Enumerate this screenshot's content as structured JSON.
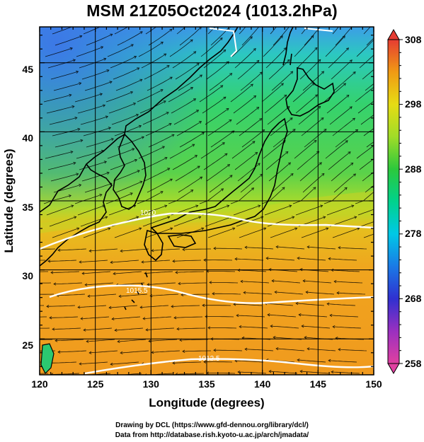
{
  "title": "MSM 21Z05Oct2024 (1013.2hPa)",
  "axes": {
    "x_label": "Longitude (degrees)",
    "y_label": "Latitude  (degrees)",
    "x_ticks": [
      "120",
      "125",
      "130",
      "135",
      "140",
      "145",
      "150"
    ],
    "y_ticks": [
      "25",
      "30",
      "35",
      "40",
      "45"
    ],
    "x_range": [
      120,
      150
    ],
    "y_range": [
      22.4,
      47.6
    ]
  },
  "colorbar": {
    "ticks": [
      "308",
      "298",
      "288",
      "278",
      "268",
      "258"
    ],
    "range": [
      258,
      308
    ],
    "colors": [
      "#e0409a",
      "#9a2db8",
      "#3030c8",
      "#1a78e6",
      "#00c8e6",
      "#00d28c",
      "#28c83c",
      "#96dc28",
      "#dcdc14",
      "#f0a014",
      "#f06e28",
      "#e63c32"
    ]
  },
  "isobar_labels": [
    "1020",
    "1015.5",
    "1012.5"
  ],
  "map": {
    "layers": [
      "temperature-shading",
      "streamlines",
      "isobars",
      "coastlines",
      "lat-lon-grid"
    ],
    "colors": {
      "north_cold": "#3cb4e6",
      "mid_green": "#3cd25a",
      "south_orange": "#f0a01e",
      "isobar": "#ffffff",
      "coast": "#000000"
    }
  },
  "credits": {
    "line1": "Drawing by DCL (https://www.gfd-dennou.org/library/dcl/)",
    "line2": "Data from http://database.rish.kyoto-u.ac.jp/arch/jmadata/"
  }
}
